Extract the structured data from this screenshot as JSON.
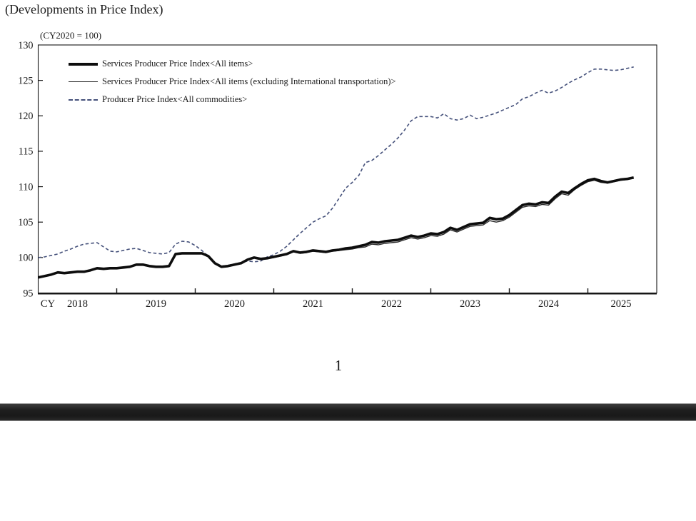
{
  "page": {
    "title": "(Developments in Price Index)",
    "page_number": "1"
  },
  "chart_data": {
    "type": "line",
    "title": "(Developments in Price Index)",
    "unit_note": "(CY2020 = 100)",
    "x_axis_prefix": "CY",
    "x_unit": "month",
    "x_start": "2018-01",
    "x_end": "2025-08",
    "x_years": [
      2018,
      2019,
      2020,
      2021,
      2022,
      2023,
      2024,
      2025
    ],
    "ylim": [
      95,
      130
    ],
    "y_ticks": [
      95,
      100,
      105,
      110,
      115,
      120,
      125,
      130
    ],
    "grid": false,
    "legend_position": "top-left-inside",
    "axis_color": "#161616",
    "series": [
      {
        "name": "Services Producer Price Index<All items>",
        "style": "solid-thick",
        "color": "#0d0d0d",
        "values": [
          97.2,
          97.4,
          97.6,
          97.9,
          97.8,
          97.9,
          98.0,
          98.0,
          98.2,
          98.5,
          98.4,
          98.5,
          98.5,
          98.6,
          98.7,
          99.0,
          99.0,
          98.8,
          98.7,
          98.7,
          98.8,
          100.5,
          100.6,
          100.6,
          100.6,
          100.6,
          100.2,
          99.2,
          98.7,
          98.8,
          99.0,
          99.2,
          99.7,
          100.0,
          99.8,
          99.9,
          100.1,
          100.3,
          100.5,
          100.9,
          100.7,
          100.8,
          101.0,
          100.9,
          100.8,
          101.0,
          101.1,
          101.3,
          101.4,
          101.6,
          101.8,
          102.2,
          102.1,
          102.3,
          102.4,
          102.5,
          102.8,
          103.1,
          102.9,
          103.1,
          103.4,
          103.3,
          103.6,
          104.2,
          103.9,
          104.3,
          104.7,
          104.8,
          104.9,
          105.6,
          105.4,
          105.5,
          106.0,
          106.7,
          107.4,
          107.6,
          107.5,
          107.8,
          107.7,
          108.6,
          109.3,
          109.1,
          109.8,
          110.4,
          110.9,
          111.1,
          110.8,
          110.6,
          110.8,
          111.0,
          111.1,
          111.3
        ]
      },
      {
        "name": "Services Producer Price Index<All items (excluding International transportation)>",
        "style": "solid-thin",
        "color": "#2a2a2a",
        "values": [
          97.2,
          97.4,
          97.6,
          97.9,
          97.8,
          97.9,
          98.0,
          98.0,
          98.2,
          98.5,
          98.4,
          98.5,
          98.5,
          98.6,
          98.7,
          99.0,
          99.0,
          98.8,
          98.7,
          98.7,
          98.8,
          100.5,
          100.6,
          100.6,
          100.6,
          100.6,
          100.2,
          99.2,
          98.7,
          98.8,
          99.0,
          99.2,
          99.7,
          100.0,
          99.8,
          99.9,
          100.0,
          100.2,
          100.4,
          100.8,
          100.6,
          100.7,
          100.9,
          100.8,
          100.7,
          100.9,
          101.0,
          101.1,
          101.2,
          101.4,
          101.5,
          101.9,
          101.8,
          102.0,
          102.1,
          102.2,
          102.5,
          102.8,
          102.6,
          102.8,
          103.1,
          103.0,
          103.3,
          103.9,
          103.6,
          104.0,
          104.4,
          104.5,
          104.6,
          105.2,
          105.0,
          105.2,
          105.7,
          106.4,
          107.1,
          107.3,
          107.2,
          107.5,
          107.4,
          108.3,
          109.0,
          108.8,
          109.6,
          110.2,
          110.7,
          110.9,
          110.6,
          110.5,
          110.7,
          110.9,
          111.0,
          111.2
        ]
      },
      {
        "name": "Producer Price Index<All commodities>",
        "style": "dashed",
        "color": "#44507a",
        "values": [
          100.0,
          100.1,
          100.3,
          100.5,
          100.9,
          101.2,
          101.6,
          101.9,
          102.0,
          102.1,
          101.5,
          100.9,
          100.8,
          101.0,
          101.2,
          101.3,
          101.0,
          100.7,
          100.6,
          100.5,
          100.7,
          101.9,
          102.3,
          102.2,
          101.7,
          101.0,
          100.2,
          99.3,
          98.8,
          98.9,
          99.1,
          99.3,
          99.5,
          99.4,
          99.5,
          100.1,
          100.4,
          100.9,
          101.6,
          102.5,
          103.4,
          104.2,
          105.0,
          105.5,
          105.9,
          107.0,
          108.4,
          109.8,
          110.6,
          111.6,
          113.4,
          113.7,
          114.4,
          115.2,
          116.0,
          116.9,
          118.0,
          119.3,
          119.9,
          119.9,
          119.9,
          119.7,
          120.3,
          119.6,
          119.4,
          119.6,
          120.1,
          119.6,
          119.8,
          120.1,
          120.4,
          120.8,
          121.2,
          121.6,
          122.4,
          122.7,
          123.2,
          123.6,
          123.2,
          123.5,
          124.0,
          124.6,
          125.1,
          125.5,
          126.1,
          126.6,
          126.6,
          126.5,
          126.4,
          126.5,
          126.7,
          126.9
        ]
      }
    ]
  }
}
